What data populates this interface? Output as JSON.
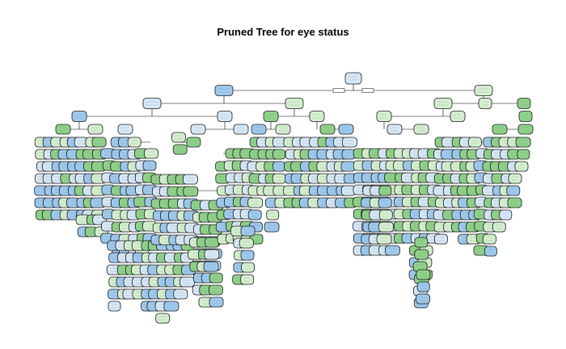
{
  "title": "Pruned Tree for eye status",
  "colors": {
    "class_open": "#9ec9ee",
    "class_open_light": "#d6e7f7",
    "class_closed": "#8fd18a",
    "class_closed_light": "#d4efcf",
    "node_border": "#1a1a1a",
    "edge": "#000000"
  },
  "chart_data": {
    "type": "tree",
    "title": "Pruned Tree for eye status",
    "node_style": "rounded boxes shaded by predicted class (blue and green); node and split labels are too small to read in the image"
  }
}
